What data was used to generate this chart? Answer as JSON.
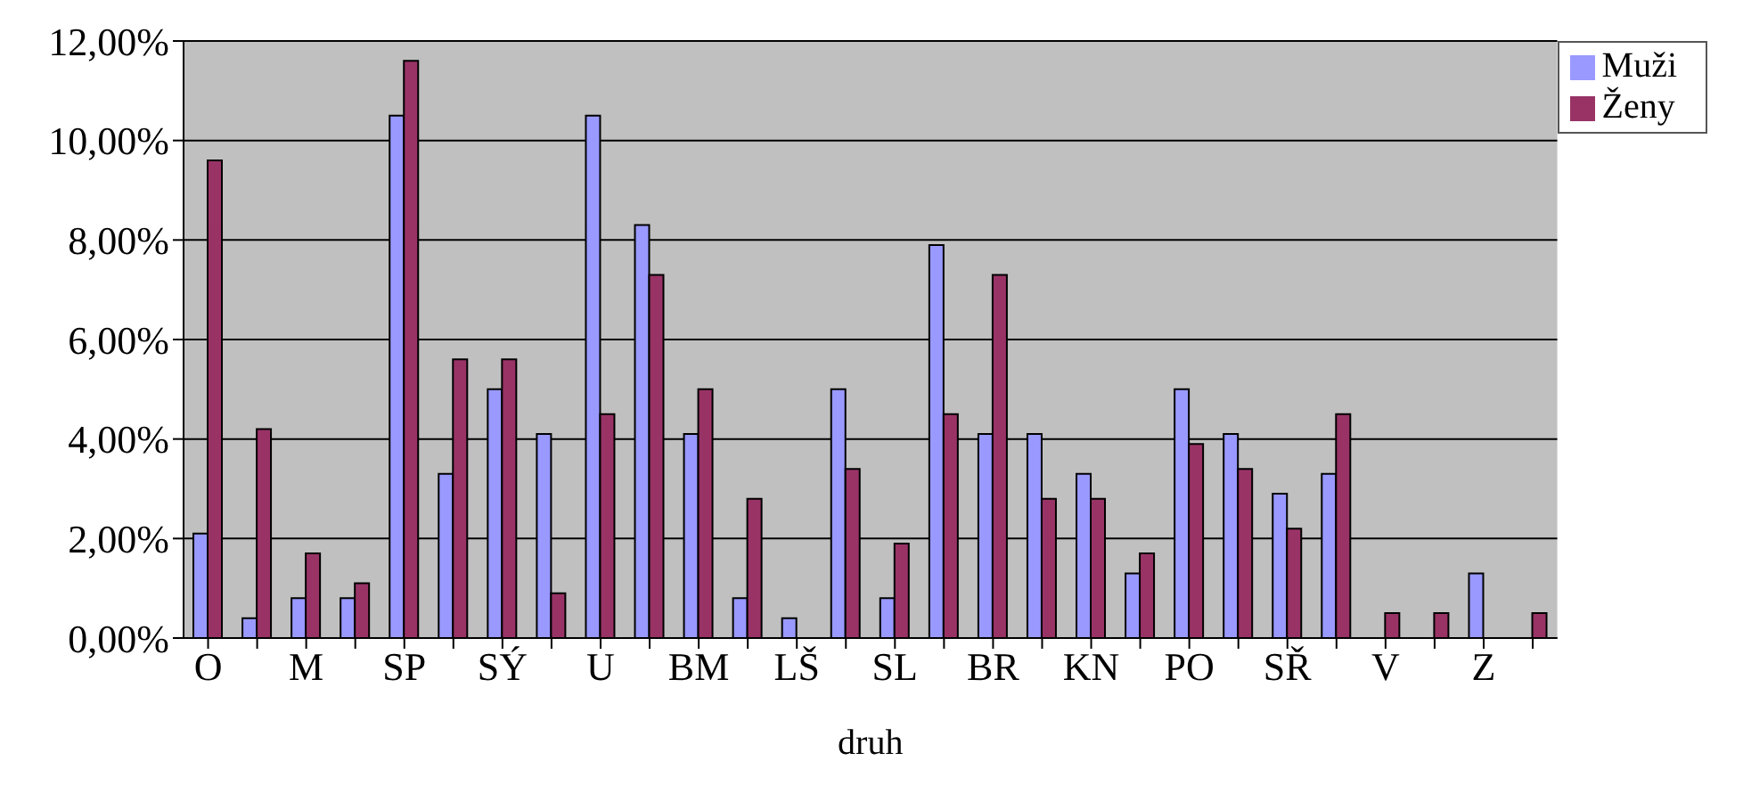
{
  "chart_data": {
    "type": "bar",
    "xlabel": "druh",
    "categories": [
      "O",
      null,
      "M",
      null,
      "SP",
      null,
      "SÝ",
      null,
      "U",
      null,
      "BM",
      null,
      "LŠ",
      null,
      "SL",
      null,
      "BR",
      null,
      "KN",
      null,
      "PO",
      null,
      "SŘ",
      null,
      "V",
      null,
      "Z",
      null
    ],
    "series": [
      {
        "name": "Muži",
        "color": "#9999ff",
        "values": [
          2.1,
          0.4,
          0.8,
          0.8,
          10.5,
          3.3,
          5.0,
          4.1,
          10.5,
          8.3,
          4.1,
          0.8,
          0.4,
          5.0,
          0.8,
          7.9,
          4.1,
          4.1,
          3.3,
          1.3,
          5.0,
          4.1,
          2.9,
          3.3,
          0,
          0,
          1.3,
          0
        ]
      },
      {
        "name": "Ženy",
        "color": "#993366",
        "values": [
          9.6,
          4.2,
          1.7,
          1.1,
          11.6,
          5.6,
          5.6,
          0.9,
          4.5,
          7.3,
          5.0,
          2.8,
          0,
          3.4,
          1.9,
          4.5,
          7.3,
          2.8,
          2.8,
          1.7,
          3.9,
          3.4,
          2.2,
          4.5,
          0.5,
          0.5,
          0,
          0.5
        ]
      }
    ],
    "ylim": [
      0,
      12
    ],
    "yticks": [
      {
        "value": 0,
        "label": "0,00%"
      },
      {
        "value": 2,
        "label": "2,00%"
      },
      {
        "value": 4,
        "label": "4,00%"
      },
      {
        "value": 6,
        "label": "6,00%"
      },
      {
        "value": 8,
        "label": "8,00%"
      },
      {
        "value": 10,
        "label": "10,00%"
      },
      {
        "value": 12,
        "label": "12,00%"
      }
    ],
    "grid": "y",
    "legend": "top right"
  }
}
